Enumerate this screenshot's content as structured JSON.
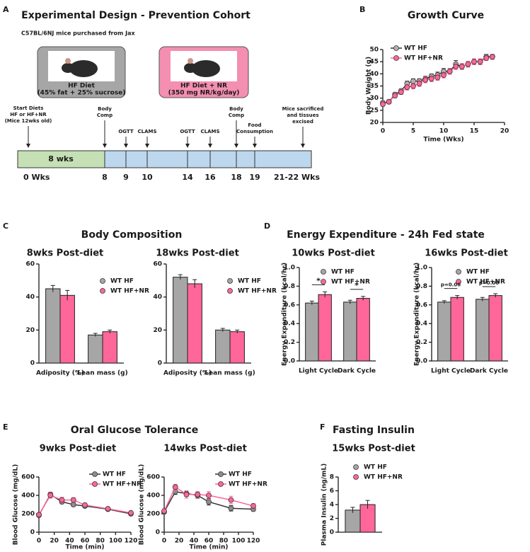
{
  "panels": [
    {
      "label": "A"
    },
    {
      "label": "B"
    },
    {
      "label": "C",
      "title": "Body Composition"
    },
    {
      "label": "D",
      "title": "Energy Expenditure - 24h Fed state"
    },
    {
      "label": "E",
      "title": "Oral Glucose Tolerance"
    },
    {
      "label": "F",
      "title": "Fasting Insulin"
    }
  ],
  "design": {
    "title": "Experimental Design - Prevention Cohort",
    "source": "C57BL/6NJ mice purchased from Jax",
    "diets": [
      {
        "label": "HF Diet",
        "detail": "(45% fat + 25% sucrose)"
      },
      {
        "label": "HF Diet + NR",
        "detail": "(350 mg NR/kg/day)"
      }
    ],
    "timeline": {
      "phase": "8 wks",
      "events": [
        {
          "label": [
            "Start Diets",
            "HF or HF+NR",
            "(Mice 12wks old)"
          ],
          "tick": "0 Wks"
        },
        {
          "label": [
            "Body",
            "Comp"
          ],
          "tick": "8"
        },
        {
          "label": [
            "OGTT"
          ],
          "tick": "9"
        },
        {
          "label": [
            "CLAMS"
          ],
          "tick": "10"
        },
        {
          "label": [
            "OGTT"
          ],
          "tick": "14"
        },
        {
          "label": [
            "CLAMS"
          ],
          "tick": "16"
        },
        {
          "label": [
            "Body",
            "Comp"
          ],
          "tick": "18"
        },
        {
          "label": [
            "Food",
            "Consumption"
          ],
          "tick": "19"
        },
        {
          "label": [
            "Mice sacrificed",
            "and tissues",
            "excised"
          ],
          "tick": "21-22 Wks"
        }
      ]
    }
  },
  "chart_data": [
    {
      "type": "line",
      "title": "Growth Curve",
      "x_label": "Time (Wks)",
      "y_label": "Body Weight (g)",
      "x": [
        0,
        1,
        2,
        3,
        4,
        5,
        6,
        7,
        8,
        9,
        10,
        11,
        12,
        13,
        14,
        15,
        16,
        17,
        18
      ],
      "xlim": [
        0,
        20
      ],
      "xticks": [
        0,
        5,
        10,
        15,
        20
      ],
      "ylim": [
        20,
        50
      ],
      "yticks": [
        20,
        25,
        30,
        35,
        40,
        45,
        50
      ],
      "series": [
        {
          "name": "WT HF",
          "color": "#b0b0b0",
          "line_color": "#333333",
          "values": [
            28,
            28.5,
            31.5,
            33,
            36,
            37,
            37,
            38,
            39,
            39.5,
            41,
            41,
            44,
            43,
            44,
            45,
            45,
            47,
            47
          ],
          "errors": [
            0.8,
            0.6,
            0.8,
            0.8,
            1,
            1,
            1,
            1,
            1,
            1.2,
            1.2,
            1.2,
            1.5,
            1.2,
            1.2,
            1.2,
            1.2,
            1,
            1
          ]
        },
        {
          "name": "WT HF+NR",
          "color": "#ff6699",
          "line_color": "#ff6699",
          "values": [
            27.5,
            28.5,
            31,
            32.5,
            34.5,
            35,
            36,
            37.5,
            38,
            38.5,
            39.5,
            41,
            43,
            43,
            44,
            45,
            45,
            46.5,
            47
          ],
          "errors": [
            0.8,
            0.6,
            0.8,
            1,
            1.2,
            1.2,
            1.2,
            1.2,
            1.2,
            1.2,
            1.2,
            1.2,
            1.2,
            1.2,
            1.2,
            1.2,
            1.2,
            1,
            1
          ]
        }
      ]
    },
    {
      "type": "bar",
      "title": "8wks Post-diet",
      "categories": [
        "Adiposity (%)",
        "Lean mass (g)"
      ],
      "ylim": [
        0,
        60
      ],
      "yticks": [
        0,
        20,
        40,
        60
      ],
      "series": [
        {
          "name": "WT HF",
          "color": "#a6a6a6",
          "values": [
            45,
            17
          ],
          "errors": [
            2,
            1
          ]
        },
        {
          "name": "WT HF+NR",
          "color": "#ff6699",
          "values": [
            41,
            19
          ],
          "errors": [
            3,
            1
          ]
        }
      ]
    },
    {
      "type": "bar",
      "title": "18wks Post-diet",
      "categories": [
        "Adiposity (%)",
        "Lean mass (g)"
      ],
      "ylim": [
        0,
        60
      ],
      "yticks": [
        0,
        20,
        40,
        60
      ],
      "series": [
        {
          "name": "WT HF",
          "color": "#a6a6a6",
          "values": [
            52,
            20
          ],
          "errors": [
            1.5,
            1
          ]
        },
        {
          "name": "WT HF+NR",
          "color": "#ff6699",
          "values": [
            48,
            19
          ],
          "errors": [
            2.5,
            1
          ]
        }
      ]
    },
    {
      "type": "bar",
      "title": "10wks Post-diet",
      "y_label": "Energy Expenditure (kcal/hr)",
      "categories": [
        "Light Cycle",
        "Dark Cycle"
      ],
      "ylim": [
        0,
        1
      ],
      "yticks": [
        {
          "value": 0,
          "label": "0.0"
        },
        0.2,
        0.4,
        0.6,
        0.8,
        {
          "value": 1,
          "label": "1.0"
        }
      ],
      "annotations": [
        "*",
        "*"
      ],
      "series": [
        {
          "name": "WT HF",
          "color": "#a6a6a6",
          "values": [
            0.62,
            0.63
          ],
          "errors": [
            0.02,
            0.02
          ]
        },
        {
          "name": "WT HF+NR",
          "color": "#ff6699",
          "values": [
            0.71,
            0.67
          ],
          "errors": [
            0.03,
            0.02
          ]
        }
      ]
    },
    {
      "type": "bar",
      "title": "16wks Post-diet",
      "y_label": "Energy Expenditure (kcal/hr)",
      "categories": [
        "Light Cycle",
        "Dark Cycle"
      ],
      "ylim": [
        0,
        1
      ],
      "yticks": [
        {
          "value": 0,
          "label": "0.0"
        },
        0.2,
        0.4,
        0.6,
        0.8,
        {
          "value": 1,
          "label": "1.0"
        }
      ],
      "annotations": [
        "p=0.06",
        "p=0.06"
      ],
      "series": [
        {
          "name": "WT HF",
          "color": "#a6a6a6",
          "values": [
            0.63,
            0.66
          ],
          "errors": [
            0.015,
            0.02
          ]
        },
        {
          "name": "WT HF+NR",
          "color": "#ff6699",
          "values": [
            0.68,
            0.7
          ],
          "errors": [
            0.02,
            0.02
          ]
        }
      ]
    },
    {
      "type": "line",
      "title": "9wks Post-diet",
      "x_label": "Time (min)",
      "y_label": "Blood Glucose (mg/dL)",
      "x": [
        0,
        15,
        30,
        45,
        60,
        90,
        120
      ],
      "xlim": [
        0,
        120
      ],
      "xticks": [
        0,
        20,
        40,
        60,
        80,
        100,
        120
      ],
      "ylim": [
        0,
        600
      ],
      "yticks": [
        0,
        200,
        400,
        600
      ],
      "series": [
        {
          "name": "WT HF",
          "color": "#8c8c8c",
          "line_color": "#333333",
          "values": [
            185,
            410,
            330,
            300,
            285,
            250,
            200
          ],
          "errors": [
            10,
            25,
            20,
            20,
            15,
            15,
            10
          ]
        },
        {
          "name": "WT HF+NR",
          "color": "#ff6699",
          "line_color": "#ff6699",
          "values": [
            190,
            400,
            350,
            350,
            295,
            255,
            210
          ],
          "errors": [
            10,
            30,
            30,
            25,
            15,
            15,
            12
          ]
        }
      ]
    },
    {
      "type": "line",
      "title": "14wks Post-diet",
      "x_label": "Time (min)",
      "y_label": "Blood Glucose (mg/dL)",
      "x": [
        0,
        15,
        30,
        45,
        60,
        90,
        120
      ],
      "xlim": [
        0,
        120
      ],
      "xticks": [
        0,
        20,
        40,
        60,
        80,
        100,
        120
      ],
      "ylim": [
        0,
        600
      ],
      "yticks": [
        0,
        200,
        400,
        600
      ],
      "series": [
        {
          "name": "WT HF",
          "color": "#8c8c8c",
          "line_color": "#333333",
          "values": [
            220,
            440,
            420,
            400,
            330,
            260,
            250
          ],
          "errors": [
            15,
            30,
            30,
            30,
            35,
            30,
            20
          ]
        },
        {
          "name": "WT HF+NR",
          "color": "#ff6699",
          "line_color": "#ff6699",
          "values": [
            230,
            490,
            410,
            410,
            400,
            350,
            285
          ],
          "errors": [
            15,
            30,
            40,
            30,
            40,
            40,
            25
          ]
        }
      ]
    },
    {
      "type": "bar",
      "title": "15wks Post-diet",
      "y_label": "Plasma Insulin (ng/mL)",
      "categories": [
        null
      ],
      "ylim": [
        0,
        8
      ],
      "yticks": [
        0,
        2,
        4,
        6,
        8
      ],
      "series": [
        {
          "name": "WT HF",
          "color": "#a6a6a6",
          "values": [
            3.2
          ],
          "errors": [
            0.4
          ]
        },
        {
          "name": "WT HF+NR",
          "color": "#ff6699",
          "values": [
            4
          ],
          "errors": [
            0.6
          ]
        }
      ]
    }
  ]
}
